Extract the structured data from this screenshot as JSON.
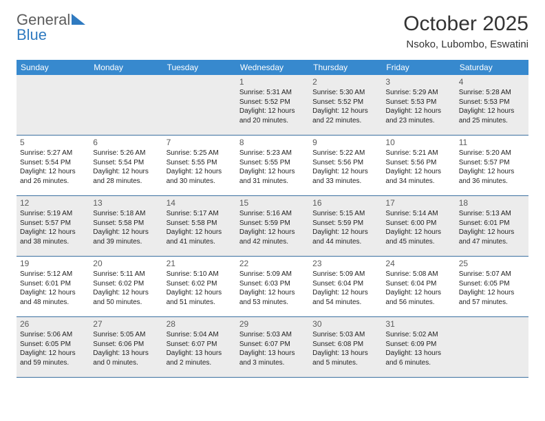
{
  "logo": {
    "text1": "General",
    "text2": "Blue"
  },
  "header": {
    "month_title": "October 2025",
    "location": "Nsoko, Lubombo, Eswatini"
  },
  "colors": {
    "header_bg": "#3789ce",
    "header_text": "#ffffff",
    "row_border": "#3a6f9f",
    "shaded_bg": "#ececec",
    "logo_gray": "#5c5c5c",
    "logo_blue": "#2f7ac0"
  },
  "day_names": [
    "Sunday",
    "Monday",
    "Tuesday",
    "Wednesday",
    "Thursday",
    "Friday",
    "Saturday"
  ],
  "weeks": [
    [
      {
        "blank": true
      },
      {
        "blank": true
      },
      {
        "blank": true
      },
      {
        "day": "1",
        "sunrise": "Sunrise: 5:31 AM",
        "sunset": "Sunset: 5:52 PM",
        "daylight": "Daylight: 12 hours and 20 minutes."
      },
      {
        "day": "2",
        "sunrise": "Sunrise: 5:30 AM",
        "sunset": "Sunset: 5:52 PM",
        "daylight": "Daylight: 12 hours and 22 minutes."
      },
      {
        "day": "3",
        "sunrise": "Sunrise: 5:29 AM",
        "sunset": "Sunset: 5:53 PM",
        "daylight": "Daylight: 12 hours and 23 minutes."
      },
      {
        "day": "4",
        "sunrise": "Sunrise: 5:28 AM",
        "sunset": "Sunset: 5:53 PM",
        "daylight": "Daylight: 12 hours and 25 minutes."
      }
    ],
    [
      {
        "day": "5",
        "sunrise": "Sunrise: 5:27 AM",
        "sunset": "Sunset: 5:54 PM",
        "daylight": "Daylight: 12 hours and 26 minutes."
      },
      {
        "day": "6",
        "sunrise": "Sunrise: 5:26 AM",
        "sunset": "Sunset: 5:54 PM",
        "daylight": "Daylight: 12 hours and 28 minutes."
      },
      {
        "day": "7",
        "sunrise": "Sunrise: 5:25 AM",
        "sunset": "Sunset: 5:55 PM",
        "daylight": "Daylight: 12 hours and 30 minutes."
      },
      {
        "day": "8",
        "sunrise": "Sunrise: 5:23 AM",
        "sunset": "Sunset: 5:55 PM",
        "daylight": "Daylight: 12 hours and 31 minutes."
      },
      {
        "day": "9",
        "sunrise": "Sunrise: 5:22 AM",
        "sunset": "Sunset: 5:56 PM",
        "daylight": "Daylight: 12 hours and 33 minutes."
      },
      {
        "day": "10",
        "sunrise": "Sunrise: 5:21 AM",
        "sunset": "Sunset: 5:56 PM",
        "daylight": "Daylight: 12 hours and 34 minutes."
      },
      {
        "day": "11",
        "sunrise": "Sunrise: 5:20 AM",
        "sunset": "Sunset: 5:57 PM",
        "daylight": "Daylight: 12 hours and 36 minutes."
      }
    ],
    [
      {
        "day": "12",
        "sunrise": "Sunrise: 5:19 AM",
        "sunset": "Sunset: 5:57 PM",
        "daylight": "Daylight: 12 hours and 38 minutes."
      },
      {
        "day": "13",
        "sunrise": "Sunrise: 5:18 AM",
        "sunset": "Sunset: 5:58 PM",
        "daylight": "Daylight: 12 hours and 39 minutes."
      },
      {
        "day": "14",
        "sunrise": "Sunrise: 5:17 AM",
        "sunset": "Sunset: 5:58 PM",
        "daylight": "Daylight: 12 hours and 41 minutes."
      },
      {
        "day": "15",
        "sunrise": "Sunrise: 5:16 AM",
        "sunset": "Sunset: 5:59 PM",
        "daylight": "Daylight: 12 hours and 42 minutes."
      },
      {
        "day": "16",
        "sunrise": "Sunrise: 5:15 AM",
        "sunset": "Sunset: 5:59 PM",
        "daylight": "Daylight: 12 hours and 44 minutes."
      },
      {
        "day": "17",
        "sunrise": "Sunrise: 5:14 AM",
        "sunset": "Sunset: 6:00 PM",
        "daylight": "Daylight: 12 hours and 45 minutes."
      },
      {
        "day": "18",
        "sunrise": "Sunrise: 5:13 AM",
        "sunset": "Sunset: 6:01 PM",
        "daylight": "Daylight: 12 hours and 47 minutes."
      }
    ],
    [
      {
        "day": "19",
        "sunrise": "Sunrise: 5:12 AM",
        "sunset": "Sunset: 6:01 PM",
        "daylight": "Daylight: 12 hours and 48 minutes."
      },
      {
        "day": "20",
        "sunrise": "Sunrise: 5:11 AM",
        "sunset": "Sunset: 6:02 PM",
        "daylight": "Daylight: 12 hours and 50 minutes."
      },
      {
        "day": "21",
        "sunrise": "Sunrise: 5:10 AM",
        "sunset": "Sunset: 6:02 PM",
        "daylight": "Daylight: 12 hours and 51 minutes."
      },
      {
        "day": "22",
        "sunrise": "Sunrise: 5:09 AM",
        "sunset": "Sunset: 6:03 PM",
        "daylight": "Daylight: 12 hours and 53 minutes."
      },
      {
        "day": "23",
        "sunrise": "Sunrise: 5:09 AM",
        "sunset": "Sunset: 6:04 PM",
        "daylight": "Daylight: 12 hours and 54 minutes."
      },
      {
        "day": "24",
        "sunrise": "Sunrise: 5:08 AM",
        "sunset": "Sunset: 6:04 PM",
        "daylight": "Daylight: 12 hours and 56 minutes."
      },
      {
        "day": "25",
        "sunrise": "Sunrise: 5:07 AM",
        "sunset": "Sunset: 6:05 PM",
        "daylight": "Daylight: 12 hours and 57 minutes."
      }
    ],
    [
      {
        "day": "26",
        "sunrise": "Sunrise: 5:06 AM",
        "sunset": "Sunset: 6:05 PM",
        "daylight": "Daylight: 12 hours and 59 minutes."
      },
      {
        "day": "27",
        "sunrise": "Sunrise: 5:05 AM",
        "sunset": "Sunset: 6:06 PM",
        "daylight": "Daylight: 13 hours and 0 minutes."
      },
      {
        "day": "28",
        "sunrise": "Sunrise: 5:04 AM",
        "sunset": "Sunset: 6:07 PM",
        "daylight": "Daylight: 13 hours and 2 minutes."
      },
      {
        "day": "29",
        "sunrise": "Sunrise: 5:03 AM",
        "sunset": "Sunset: 6:07 PM",
        "daylight": "Daylight: 13 hours and 3 minutes."
      },
      {
        "day": "30",
        "sunrise": "Sunrise: 5:03 AM",
        "sunset": "Sunset: 6:08 PM",
        "daylight": "Daylight: 13 hours and 5 minutes."
      },
      {
        "day": "31",
        "sunrise": "Sunrise: 5:02 AM",
        "sunset": "Sunset: 6:09 PM",
        "daylight": "Daylight: 13 hours and 6 minutes."
      },
      {
        "blank": true
      }
    ]
  ]
}
